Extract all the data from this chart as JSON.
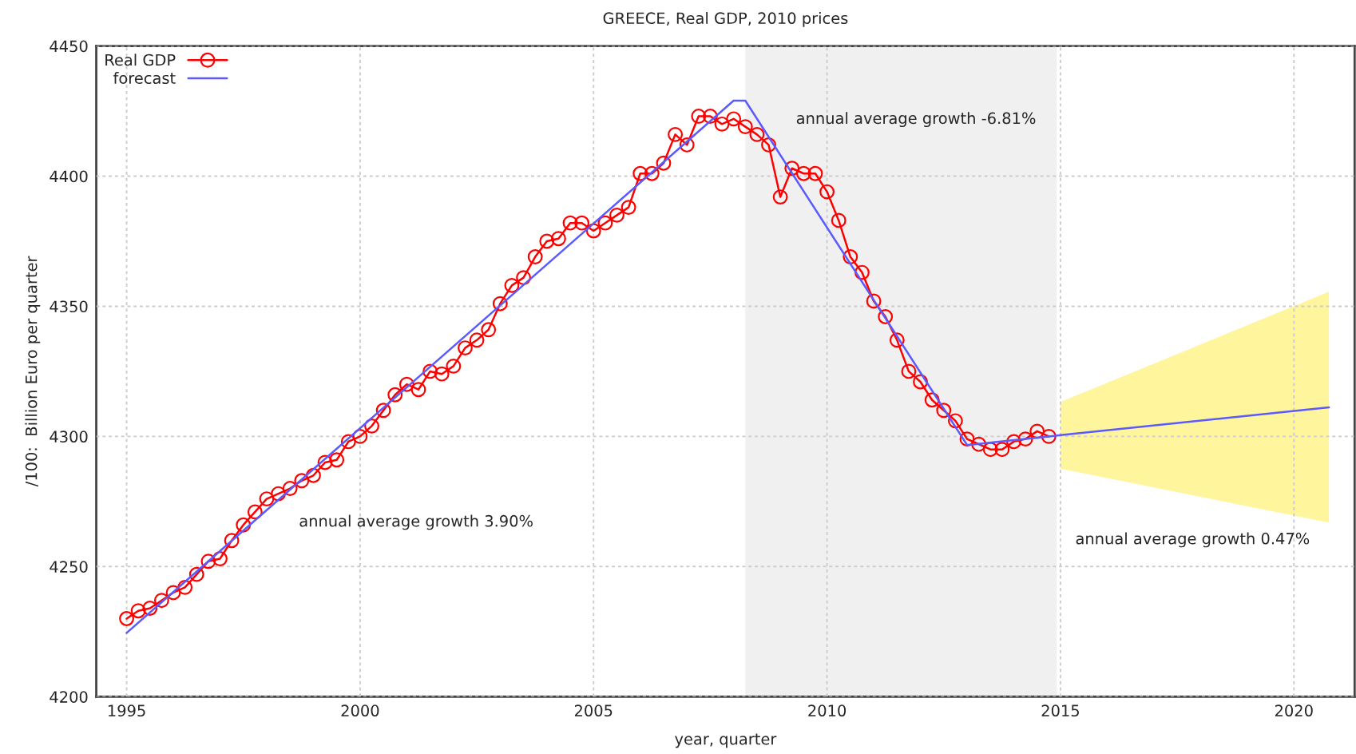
{
  "chart_data": {
    "type": "line",
    "title": "GREECE, Real GDP, 2010 prices",
    "xlabel": "year, quarter",
    "ylabel": "/100:  Billion Euro per quarter",
    "xlim": [
      1994.35,
      2021.3
    ],
    "ylim": [
      4200,
      4450
    ],
    "xticks": [
      1995,
      2000,
      2005,
      2010,
      2015,
      2020
    ],
    "yticks": [
      4200,
      4250,
      4300,
      4350,
      4400,
      4450
    ],
    "grid": true,
    "legend": "top left",
    "bands": [
      {
        "axis": "x",
        "from": 2008.25,
        "to": 2014.92,
        "color": "#f0f0f0"
      }
    ],
    "annotations": [
      "annual average growth 3.90%",
      "annual average growth -6.81%",
      "annual average growth 0.47%"
    ],
    "series": [
      {
        "name": "Real GDP",
        "color": "#ff0000",
        "marker": "circle",
        "x": [
          1995.0,
          1995.25,
          1995.5,
          1995.75,
          1996.0,
          1996.25,
          1996.5,
          1996.75,
          1997.0,
          1997.25,
          1997.5,
          1997.75,
          1998.0,
          1998.25,
          1998.5,
          1998.75,
          1999.0,
          1999.25,
          1999.5,
          1999.75,
          2000.0,
          2000.25,
          2000.5,
          2000.75,
          2001.0,
          2001.25,
          2001.5,
          2001.75,
          2002.0,
          2002.25,
          2002.5,
          2002.75,
          2003.0,
          2003.25,
          2003.5,
          2003.75,
          2004.0,
          2004.25,
          2004.5,
          2004.75,
          2005.0,
          2005.25,
          2005.5,
          2005.75,
          2006.0,
          2006.25,
          2006.5,
          2006.75,
          2007.0,
          2007.25,
          2007.5,
          2007.75,
          2008.0,
          2008.25,
          2008.5,
          2008.75,
          2009.0,
          2009.25,
          2009.5,
          2009.75,
          2010.0,
          2010.25,
          2010.5,
          2010.75,
          2011.0,
          2011.25,
          2011.5,
          2011.75,
          2012.0,
          2012.25,
          2012.5,
          2012.75,
          2013.0,
          2013.25,
          2013.5,
          2013.75,
          2014.0,
          2014.25,
          2014.5,
          2014.75
        ],
        "values": [
          4230,
          4233,
          4234,
          4237,
          4240,
          4242,
          4247,
          4252,
          4253,
          4260,
          4266,
          4271,
          4276,
          4278,
          4280,
          4283,
          4285,
          4290,
          4291,
          4298,
          4300,
          4304,
          4310,
          4316,
          4320,
          4318,
          4325,
          4324,
          4327,
          4334,
          4337,
          4341,
          4351,
          4358,
          4361,
          4369,
          4375,
          4376,
          4382,
          4382,
          4379,
          4382,
          4385,
          4388,
          4401,
          4401,
          4405,
          4416,
          4412,
          4423,
          4423,
          4420,
          4422,
          4419,
          4416,
          4412,
          4392,
          4403,
          4401,
          4401,
          4394,
          4383,
          4369,
          4363,
          4352,
          4346,
          4337,
          4325,
          4321,
          4314,
          4310,
          4306,
          4299,
          4297,
          4295,
          4295,
          4298,
          4299,
          4302,
          4300
        ]
      },
      {
        "name": "forecast",
        "color": "#5a5aff",
        "marker": "none",
        "x": [
          1995.0,
          2008.0,
          2008.25,
          2013.0,
          2014.75,
          2015.0,
          2020.75
        ],
        "values": [
          4224.5,
          4429,
          4429,
          4296.7,
          4300,
          4300.5,
          4311.2
        ],
        "lower": [
          null,
          null,
          null,
          null,
          null,
          4287.6,
          4266.9
        ],
        "upper": [
          null,
          null,
          null,
          null,
          null,
          4313.2,
          4355.6
        ]
      }
    ]
  }
}
